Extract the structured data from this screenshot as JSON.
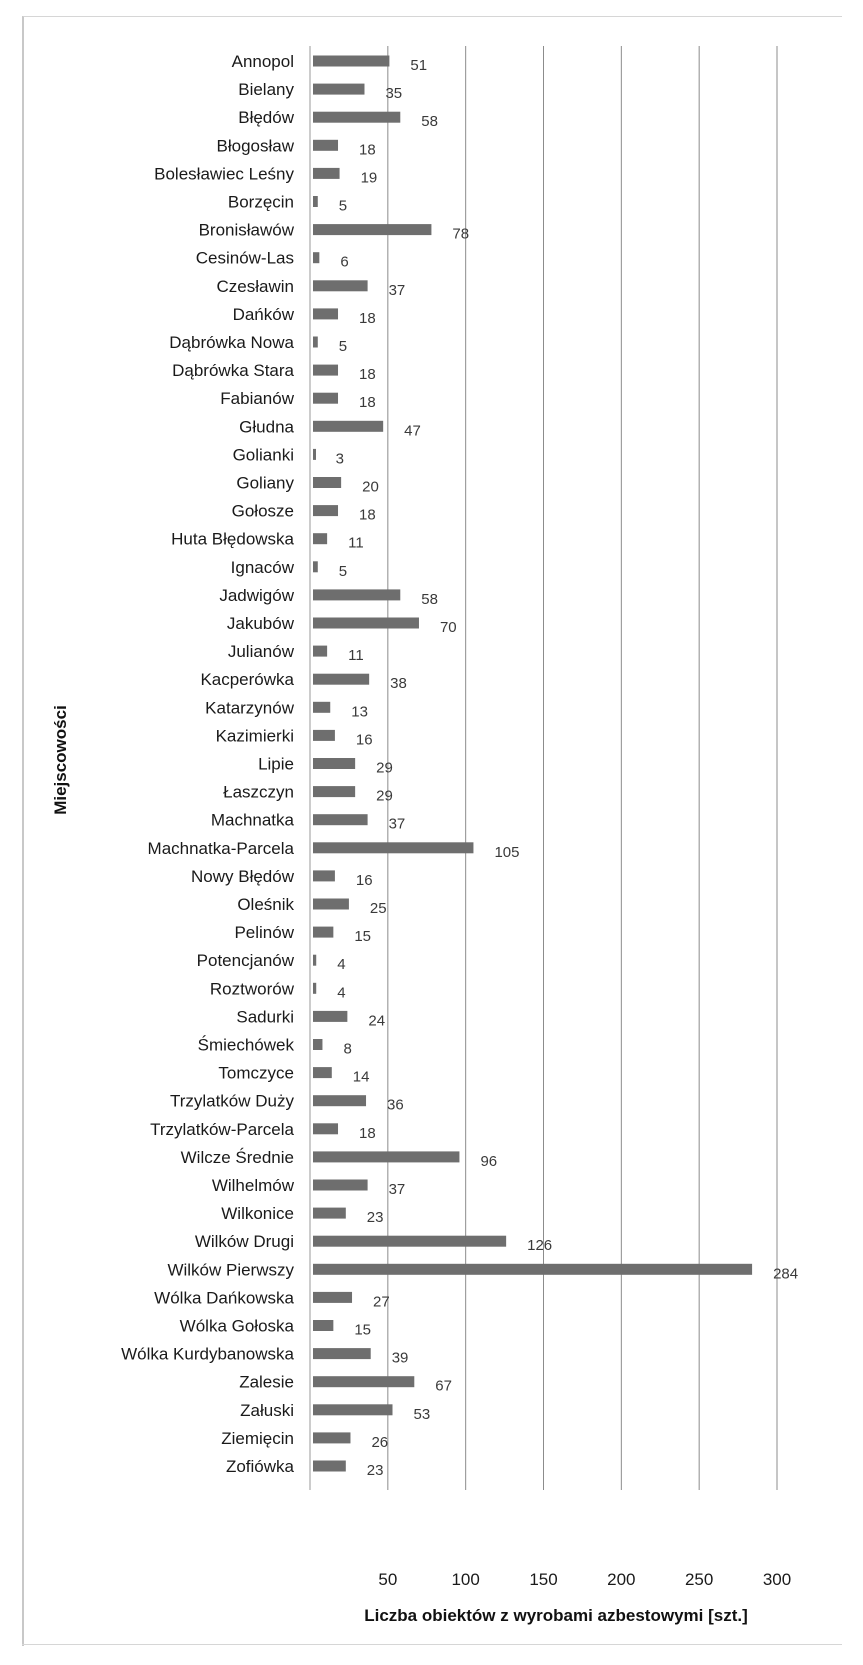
{
  "chart_data": {
    "type": "bar",
    "orientation": "horizontal",
    "xlabel": "Liczba obiektów z wyrobami azbestowymi [szt.]",
    "ylabel": "Miejscowości",
    "xlim": [
      0,
      300
    ],
    "xticks": [
      "50",
      "100",
      "150",
      "200",
      "250",
      "300"
    ],
    "grid": true,
    "bar_color": "#6e6e6e",
    "categories": [
      "Annopol",
      "Bielany",
      "Błędów",
      "Błogosław",
      "Bolesławiec Leśny",
      "Borzęcin",
      "Bronisławów",
      "Cesinów-Las",
      "Czesławin",
      "Dańków",
      "Dąbrówka Nowa",
      "Dąbrówka Stara",
      "Fabianów",
      "Głudna",
      "Golianki",
      "Goliany",
      "Gołosze",
      "Huta Błędowska",
      "Ignaców",
      "Jadwigów",
      "Jakubów",
      "Julianów",
      "Kacperówka",
      "Katarzynów",
      "Kazimierki",
      "Lipie",
      "Łaszczyn",
      "Machnatka",
      "Machnatka-Parcela",
      "Nowy Błędów",
      "Oleśnik",
      "Pelinów",
      "Potencjanów",
      "Roztworów",
      "Sadurki",
      "Śmiechówek",
      "Tomczyce",
      "Trzylatków Duży",
      "Trzylatków-Parcela",
      "Wilcze Średnie",
      "Wilhelmów",
      "Wilkonice",
      "Wilków Drugi",
      "Wilków Pierwszy",
      "Wólka Dańkowska",
      "Wólka Gołoska",
      "Wólka Kurdybanowska",
      "Zalesie",
      "Załuski",
      "Ziemięcin",
      "Zofiówka"
    ],
    "values": [
      51,
      35,
      58,
      18,
      19,
      5,
      78,
      6,
      37,
      18,
      5,
      18,
      18,
      47,
      3,
      20,
      18,
      11,
      5,
      58,
      70,
      11,
      38,
      13,
      16,
      29,
      29,
      37,
      105,
      16,
      25,
      15,
      4,
      4,
      24,
      8,
      14,
      36,
      18,
      96,
      37,
      23,
      126,
      284,
      27,
      15,
      39,
      67,
      53,
      26,
      23
    ]
  }
}
